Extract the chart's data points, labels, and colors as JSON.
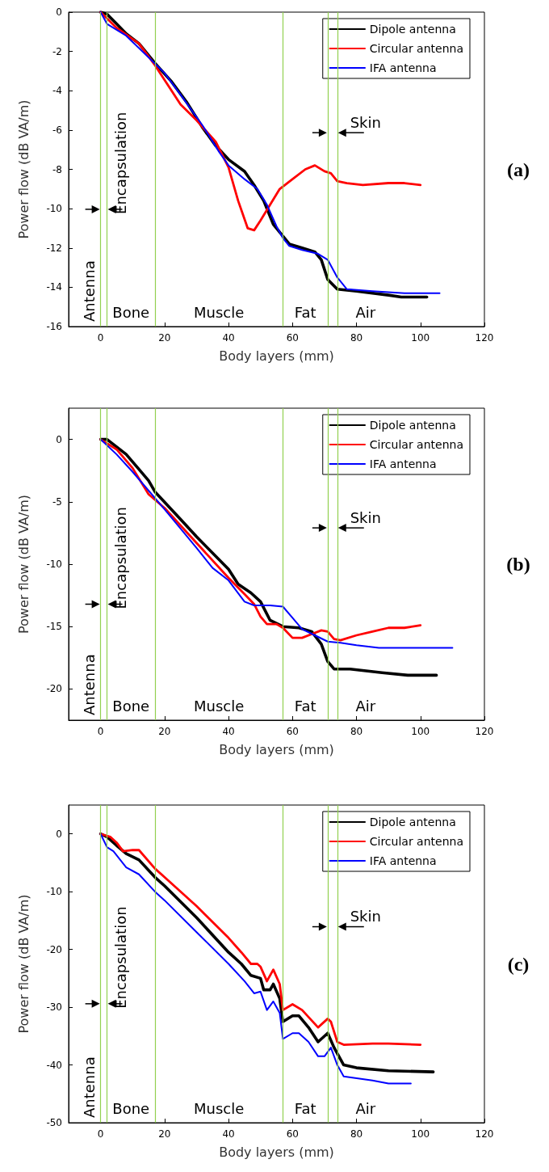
{
  "chart_data": [
    {
      "type": "line",
      "xlabel": "Body layers (mm)",
      "ylabel": "Power flow (dB VA/m)",
      "xlim": [
        -10,
        120
      ],
      "xticks": [
        0,
        20,
        40,
        60,
        80,
        100,
        120
      ],
      "ylim": [
        -16,
        0
      ],
      "yticks": [
        0,
        -2,
        -4,
        -6,
        -8,
        -10,
        -12,
        -14,
        -16
      ],
      "grid": false,
      "legend": "top right",
      "marker": "none",
      "line_style": "solid",
      "series": [
        {
          "name": "Dipole antenna",
          "color": "#000000",
          "x": [
            0,
            2,
            5,
            8,
            12,
            17,
            22,
            27,
            32,
            36,
            40,
            45,
            48,
            51,
            54,
            57,
            59,
            63,
            67,
            69,
            71,
            74,
            80,
            90,
            94,
            102
          ],
          "values": [
            0,
            -0.1,
            -0.6,
            -1.1,
            -1.6,
            -2.6,
            -3.5,
            -4.6,
            -5.9,
            -6.8,
            -7.5,
            -8.1,
            -8.8,
            -9.6,
            -10.8,
            -11.4,
            -11.8,
            -12.0,
            -12.2,
            -12.6,
            -13.6,
            -14.1,
            -14.2,
            -14.4,
            -14.5,
            -14.5
          ]
        },
        {
          "name": "Circular antenna",
          "color": "#ff0000",
          "x": [
            0,
            5,
            12,
            17,
            21,
            25,
            30,
            36,
            40,
            43,
            46,
            48,
            50,
            53,
            56,
            60,
            64,
            67,
            70,
            72,
            74,
            77,
            82,
            90,
            95,
            100
          ],
          "values": [
            0,
            -0.8,
            -1.6,
            -2.7,
            -3.7,
            -4.7,
            -5.5,
            -6.6,
            -7.9,
            -9.6,
            -11.0,
            -11.1,
            -10.6,
            -9.8,
            -9.0,
            -8.5,
            -8.0,
            -7.8,
            -8.1,
            -8.2,
            -8.6,
            -8.7,
            -8.8,
            -8.7,
            -8.7,
            -8.8
          ]
        },
        {
          "name": "IFA antenna",
          "color": "#0000ff",
          "x": [
            0,
            2,
            8,
            15,
            20,
            25,
            32,
            37,
            40,
            45,
            49,
            52,
            55,
            57,
            59,
            63,
            68,
            71,
            74,
            77,
            85,
            95,
            106
          ],
          "values": [
            0,
            -0.6,
            -1.2,
            -2.3,
            -3.1,
            -4.2,
            -5.8,
            -7.1,
            -7.8,
            -8.5,
            -9.0,
            -9.8,
            -10.9,
            -11.5,
            -11.9,
            -12.1,
            -12.3,
            -12.6,
            -13.5,
            -14.1,
            -14.2,
            -14.3,
            -14.3
          ]
        }
      ],
      "ref_lines": [
        {
          "axis": "x",
          "value": 0,
          "color": "#92d050"
        },
        {
          "axis": "x",
          "value": 2,
          "color": "#92d050"
        },
        {
          "axis": "x",
          "value": 17,
          "color": "#92d050"
        },
        {
          "axis": "x",
          "value": 57,
          "color": "#92d050"
        },
        {
          "axis": "x",
          "value": 71,
          "color": "#92d050"
        },
        {
          "axis": "x",
          "value": 74,
          "color": "#92d050"
        }
      ],
      "annotations": [
        "Antenna",
        "Encapsulation",
        "Bone",
        "Muscle",
        "Fat",
        "Air",
        "Skin",
        "(a)"
      ]
    },
    {
      "type": "line",
      "xlabel": "Body layers (mm)",
      "ylabel": "Power flow (dB VA/m)",
      "xlim": [
        -10,
        120
      ],
      "xticks": [
        0,
        20,
        40,
        60,
        80,
        100,
        120
      ],
      "ylim": [
        -22.5,
        2.5
      ],
      "yticks": [
        0,
        -5,
        -10,
        -15,
        -20
      ],
      "grid": false,
      "legend": "top right",
      "marker": "none",
      "line_style": "solid",
      "series": [
        {
          "name": "Dipole antenna",
          "color": "#000000",
          "x": [
            0,
            2,
            8,
            12,
            15,
            17,
            25,
            30,
            40,
            43,
            47,
            50,
            53,
            57,
            62,
            66,
            69,
            71,
            73,
            78,
            88,
            96,
            105
          ],
          "values": [
            0,
            0,
            -1.2,
            -2.4,
            -3.3,
            -4.2,
            -6.4,
            -7.8,
            -10.4,
            -11.6,
            -12.3,
            -13.0,
            -14.5,
            -15.0,
            -15.1,
            -15.4,
            -16.4,
            -17.8,
            -18.4,
            -18.4,
            -18.7,
            -18.9,
            -18.9
          ]
        },
        {
          "name": "Circular antenna",
          "color": "#ff0000",
          "x": [
            0,
            5,
            10,
            15,
            20,
            30,
            40,
            45,
            48,
            50,
            52,
            55,
            57,
            60,
            63,
            66,
            69,
            71,
            73,
            75,
            80,
            85,
            90,
            95,
            100
          ],
          "values": [
            0,
            -0.8,
            -2.3,
            -4.4,
            -5.5,
            -8.3,
            -11.1,
            -12.4,
            -13.2,
            -14.2,
            -14.8,
            -14.8,
            -15.1,
            -15.9,
            -15.9,
            -15.6,
            -15.3,
            -15.4,
            -16.0,
            -16.1,
            -15.7,
            -15.4,
            -15.1,
            -15.1,
            -14.9
          ]
        },
        {
          "name": "IFA antenna",
          "color": "#0000ff",
          "x": [
            0,
            5,
            10,
            20,
            30,
            35,
            40,
            45,
            48,
            53,
            57,
            60,
            63,
            67,
            71,
            75,
            80,
            87,
            95,
            110
          ],
          "values": [
            0,
            -1.2,
            -2.6,
            -5.6,
            -8.7,
            -10.3,
            -11.3,
            -13.0,
            -13.3,
            -13.3,
            -13.4,
            -14.3,
            -15.2,
            -15.7,
            -16.2,
            -16.3,
            -16.5,
            -16.7,
            -16.7,
            -16.7
          ]
        }
      ],
      "ref_lines": [
        {
          "axis": "x",
          "value": 0,
          "color": "#92d050"
        },
        {
          "axis": "x",
          "value": 2,
          "color": "#92d050"
        },
        {
          "axis": "x",
          "value": 17,
          "color": "#92d050"
        },
        {
          "axis": "x",
          "value": 57,
          "color": "#92d050"
        },
        {
          "axis": "x",
          "value": 71,
          "color": "#92d050"
        },
        {
          "axis": "x",
          "value": 74,
          "color": "#92d050"
        }
      ],
      "annotations": [
        "Antenna",
        "Encapsulation",
        "Bone",
        "Muscle",
        "Fat",
        "Air",
        "Skin",
        "(b)"
      ]
    },
    {
      "type": "line",
      "xlabel": "Body layers (mm)",
      "ylabel": "Power flow (dB VA/m)",
      "xlim": [
        -10,
        120
      ],
      "xticks": [
        0,
        20,
        40,
        60,
        80,
        100,
        120
      ],
      "ylim": [
        -50,
        5
      ],
      "yticks": [
        0,
        -10,
        -20,
        -30,
        -40,
        -50
      ],
      "grid": false,
      "legend": "top right",
      "marker": "none",
      "line_style": "solid",
      "series": [
        {
          "name": "Dipole antenna",
          "color": "#000000",
          "x": [
            0,
            2,
            5,
            8,
            12,
            17,
            20,
            30,
            40,
            44,
            47,
            50,
            51,
            53,
            54,
            56,
            57,
            60,
            62,
            65,
            68,
            71,
            73,
            76,
            80,
            90,
            104
          ],
          "values": [
            0,
            -0.5,
            -2,
            -3.4,
            -4.5,
            -7.5,
            -9,
            -14.5,
            -20.5,
            -22.5,
            -24.5,
            -25,
            -27,
            -27,
            -26,
            -28.5,
            -32.5,
            -31.5,
            -31.5,
            -33.5,
            -36,
            -34.5,
            -37,
            -40,
            -40.5,
            -41,
            -41.2
          ]
        },
        {
          "name": "Circular antenna",
          "color": "#ff0000",
          "x": [
            0,
            3,
            5,
            7,
            10,
            12,
            17,
            20,
            30,
            40,
            44,
            47,
            49,
            50,
            52,
            54,
            56,
            57,
            60,
            63,
            68,
            71,
            72,
            74,
            76,
            85,
            90,
            100
          ],
          "values": [
            0,
            -0.5,
            -1.5,
            -3,
            -2.8,
            -2.8,
            -6,
            -7.5,
            -12.5,
            -18,
            -20.5,
            -22.5,
            -22.5,
            -23,
            -25.5,
            -23.5,
            -26,
            -30.5,
            -29.5,
            -30.5,
            -33.5,
            -32,
            -32.5,
            -36,
            -36.5,
            -36.3,
            -36.3,
            -36.5
          ]
        },
        {
          "name": "IFA antenna",
          "color": "#0000ff",
          "x": [
            0,
            2,
            4,
            8,
            12,
            17,
            20,
            30,
            40,
            45,
            48,
            50,
            52,
            54,
            56,
            57,
            60,
            62,
            65,
            68,
            70,
            72,
            74,
            76,
            85,
            90,
            97
          ],
          "values": [
            0,
            -2.3,
            -3,
            -5.8,
            -7,
            -10,
            -11.5,
            -17,
            -22.5,
            -25.5,
            -27.6,
            -27.3,
            -30.5,
            -29,
            -31,
            -35.5,
            -34.5,
            -34.5,
            -36,
            -38.5,
            -38.5,
            -37,
            -40,
            -42,
            -42.7,
            -43.2,
            -43.2
          ]
        }
      ],
      "ref_lines": [
        {
          "axis": "x",
          "value": 0,
          "color": "#92d050"
        },
        {
          "axis": "x",
          "value": 2,
          "color": "#92d050"
        },
        {
          "axis": "x",
          "value": 17,
          "color": "#92d050"
        },
        {
          "axis": "x",
          "value": 57,
          "color": "#92d050"
        },
        {
          "axis": "x",
          "value": 71,
          "color": "#92d050"
        },
        {
          "axis": "x",
          "value": 74,
          "color": "#92d050"
        }
      ],
      "annotations": [
        "Antenna",
        "Encapsulation",
        "Bone",
        "Muscle",
        "Fat",
        "Air",
        "Skin",
        "(c)"
      ]
    }
  ]
}
